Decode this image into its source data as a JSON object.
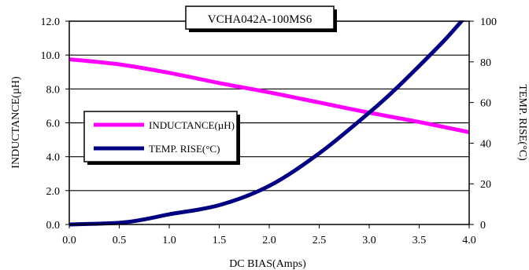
{
  "chart_data": {
    "type": "line",
    "title": "VCHA042A-100MS6",
    "xlabel": "DC BIAS(Amps)",
    "ylabel": "INDUCTANCE(µH)",
    "y2label": "TEMP. RISE(°C)",
    "xlim": [
      0,
      4
    ],
    "ylim": [
      0,
      12
    ],
    "y2lim": [
      0,
      100
    ],
    "x_ticks": [
      "0.0",
      "0.5",
      "1.0",
      "1.5",
      "2.0",
      "2.5",
      "3.0",
      "3.5",
      "4.0"
    ],
    "y_ticks": [
      "0.0",
      "2.0",
      "4.0",
      "6.0",
      "8.0",
      "10.0",
      "12.0"
    ],
    "y2_ticks": [
      "0",
      "20",
      "40",
      "60",
      "80",
      "100"
    ],
    "grid": "horizontal",
    "legend_position": "center-left",
    "series": [
      {
        "name": "INDUCTANCE(µH)",
        "axis": "left",
        "color": "#ff00ff",
        "x": [
          0,
          0.5,
          1.0,
          1.5,
          2.0,
          2.5,
          3.0,
          3.5,
          4.0
        ],
        "y": [
          9.75,
          9.45,
          8.95,
          8.35,
          7.8,
          7.2,
          6.6,
          6.05,
          5.45
        ]
      },
      {
        "name": "TEMP. RISE(°C)",
        "axis": "right",
        "color": "#000080",
        "x": [
          0,
          0.5,
          0.75,
          1.0,
          1.5,
          2.0,
          2.5,
          3.0,
          3.25,
          3.5,
          3.75,
          3.95
        ],
        "y": [
          0,
          0.8,
          2.5,
          5,
          9.5,
          19,
          35,
          55,
          66,
          78,
          90.5,
          101.5
        ]
      }
    ]
  }
}
